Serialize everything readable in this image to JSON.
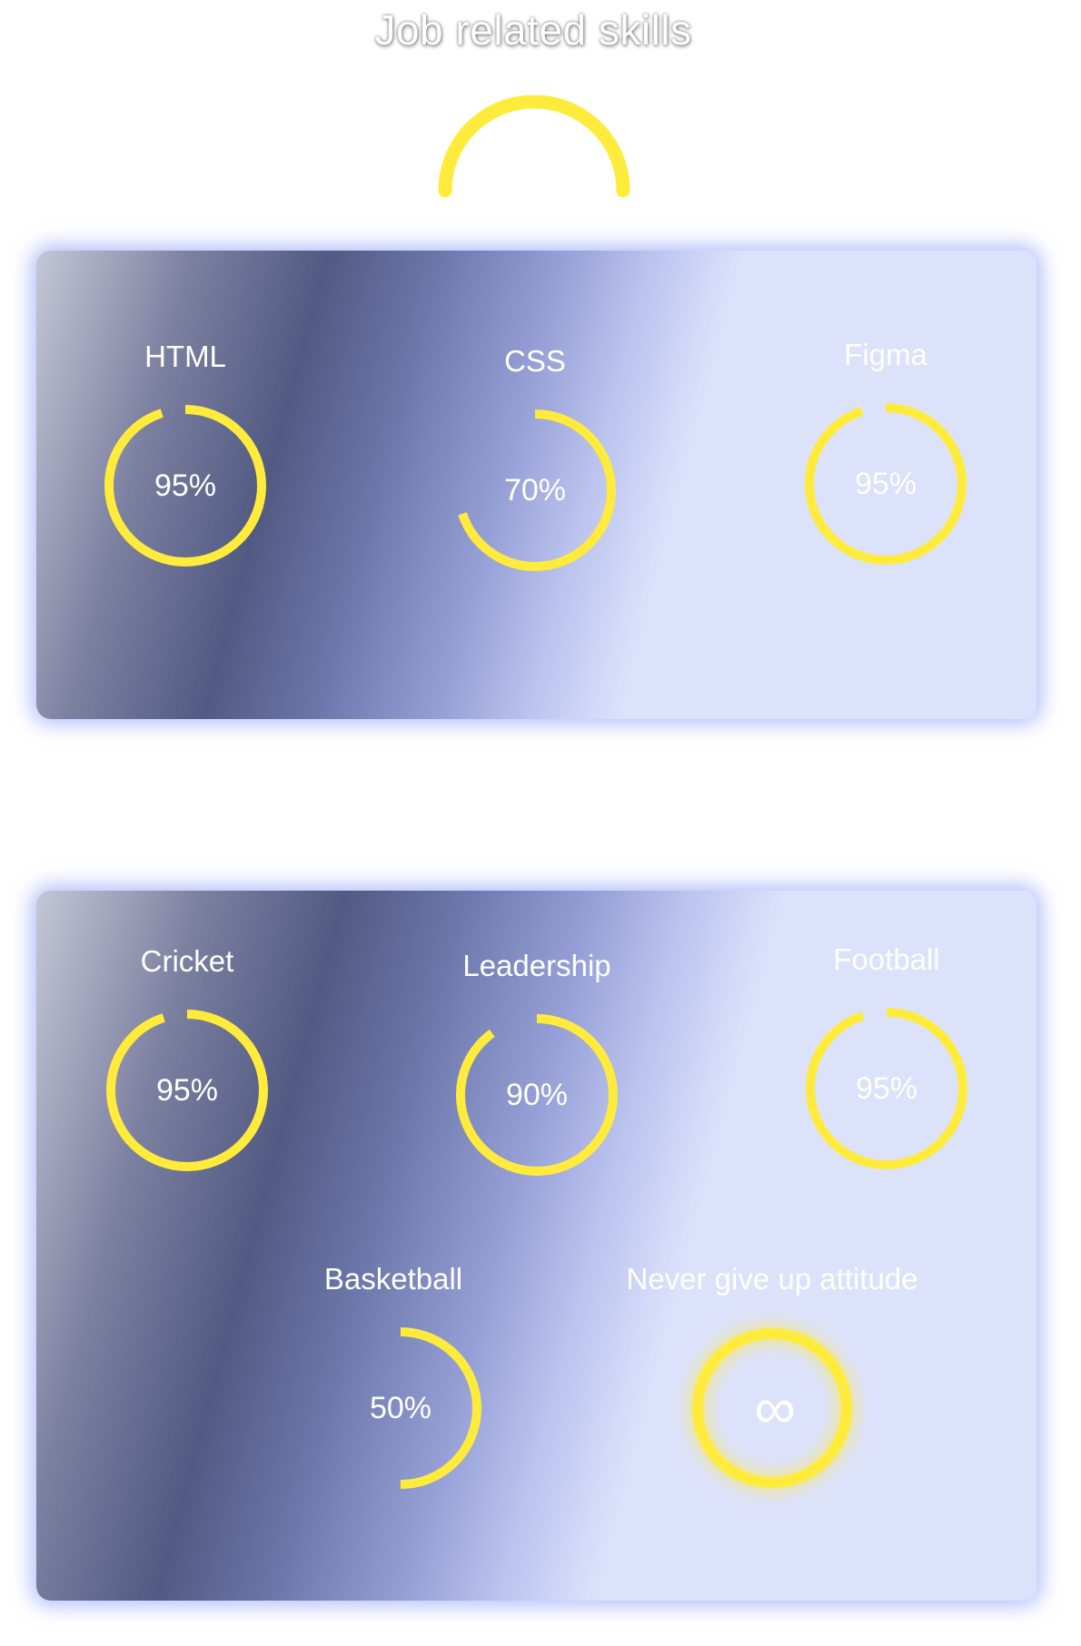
{
  "title": "Job related skills",
  "colors": {
    "ring": "#ffeb3b",
    "text": "#ffffff",
    "panel_glow": "#7c8cf5"
  },
  "job_skills": [
    {
      "name": "HTML",
      "value": "95%",
      "percent": 95
    },
    {
      "name": "CSS",
      "value": "70%",
      "percent": 70
    },
    {
      "name": "Figma",
      "value": "95%",
      "percent": 95
    }
  ],
  "other_skills": [
    {
      "name": "Cricket",
      "value": "95%",
      "percent": 95
    },
    {
      "name": "Leadership",
      "value": "90%",
      "percent": 90
    },
    {
      "name": "Football",
      "value": "95%",
      "percent": 95
    },
    {
      "name": "Basketball",
      "value": "50%",
      "percent": 50
    },
    {
      "name": "Never give up attitude",
      "value": "∞",
      "percent": 100
    }
  ]
}
